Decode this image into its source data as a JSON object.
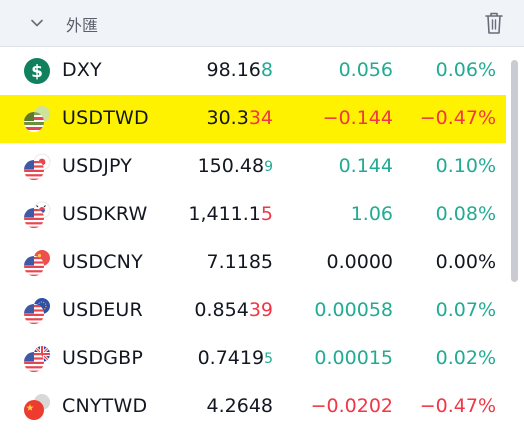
{
  "header": {
    "title": "外匯",
    "collapse_icon": "chevron-down-icon",
    "delete_icon": "trash-icon"
  },
  "colors": {
    "positive": "#22ab94",
    "negative": "#f23645",
    "highlight": "#fff200"
  },
  "rows": [
    {
      "symbol": "DXY",
      "icon": "dollar-index-icon",
      "price_main": "98.16",
      "price_tail": "8",
      "tail_small": false,
      "tail_dir": "pos",
      "change": "0.056",
      "percent": "0.06%",
      "dir": "pos",
      "highlighted": false
    },
    {
      "symbol": "USDTWD",
      "icon": "us-tw-flag-icon",
      "price_main": "30.3",
      "price_tail": "34",
      "tail_small": false,
      "tail_dir": "neg",
      "change": "−0.144",
      "percent": "−0.47%",
      "dir": "neg",
      "highlighted": true
    },
    {
      "symbol": "USDJPY",
      "icon": "us-jp-flag-icon",
      "price_main": "150.48",
      "price_tail": "9",
      "tail_small": true,
      "tail_dir": "pos",
      "change": "0.144",
      "percent": "0.10%",
      "dir": "pos",
      "highlighted": false
    },
    {
      "symbol": "USDKRW",
      "icon": "us-kr-flag-icon",
      "price_main": "1,411.1",
      "price_tail": "5",
      "tail_small": false,
      "tail_dir": "neg",
      "change": "1.06",
      "percent": "0.08%",
      "dir": "pos",
      "highlighted": false
    },
    {
      "symbol": "USDCNY",
      "icon": "us-cn-flag-icon",
      "price_main": "7.1185",
      "price_tail": "",
      "tail_small": false,
      "tail_dir": "neu",
      "change": "0.0000",
      "percent": "0.00%",
      "dir": "neu",
      "highlighted": false
    },
    {
      "symbol": "USDEUR",
      "icon": "us-eu-flag-icon",
      "price_main": "0.854",
      "price_tail": "39",
      "tail_small": false,
      "tail_dir": "neg",
      "change": "0.00058",
      "percent": "0.07%",
      "dir": "pos",
      "highlighted": false
    },
    {
      "symbol": "USDGBP",
      "icon": "us-gb-flag-icon",
      "price_main": "0.7419",
      "price_tail": "5",
      "tail_small": true,
      "tail_dir": "pos",
      "change": "0.00015",
      "percent": "0.02%",
      "dir": "pos",
      "highlighted": false
    },
    {
      "symbol": "CNYTWD",
      "icon": "cn-tw-flag-icon",
      "price_main": "4.2648",
      "price_tail": "",
      "tail_small": false,
      "tail_dir": "neu",
      "change": "−0.0202",
      "percent": "−0.47%",
      "dir": "neg",
      "highlighted": false
    }
  ]
}
